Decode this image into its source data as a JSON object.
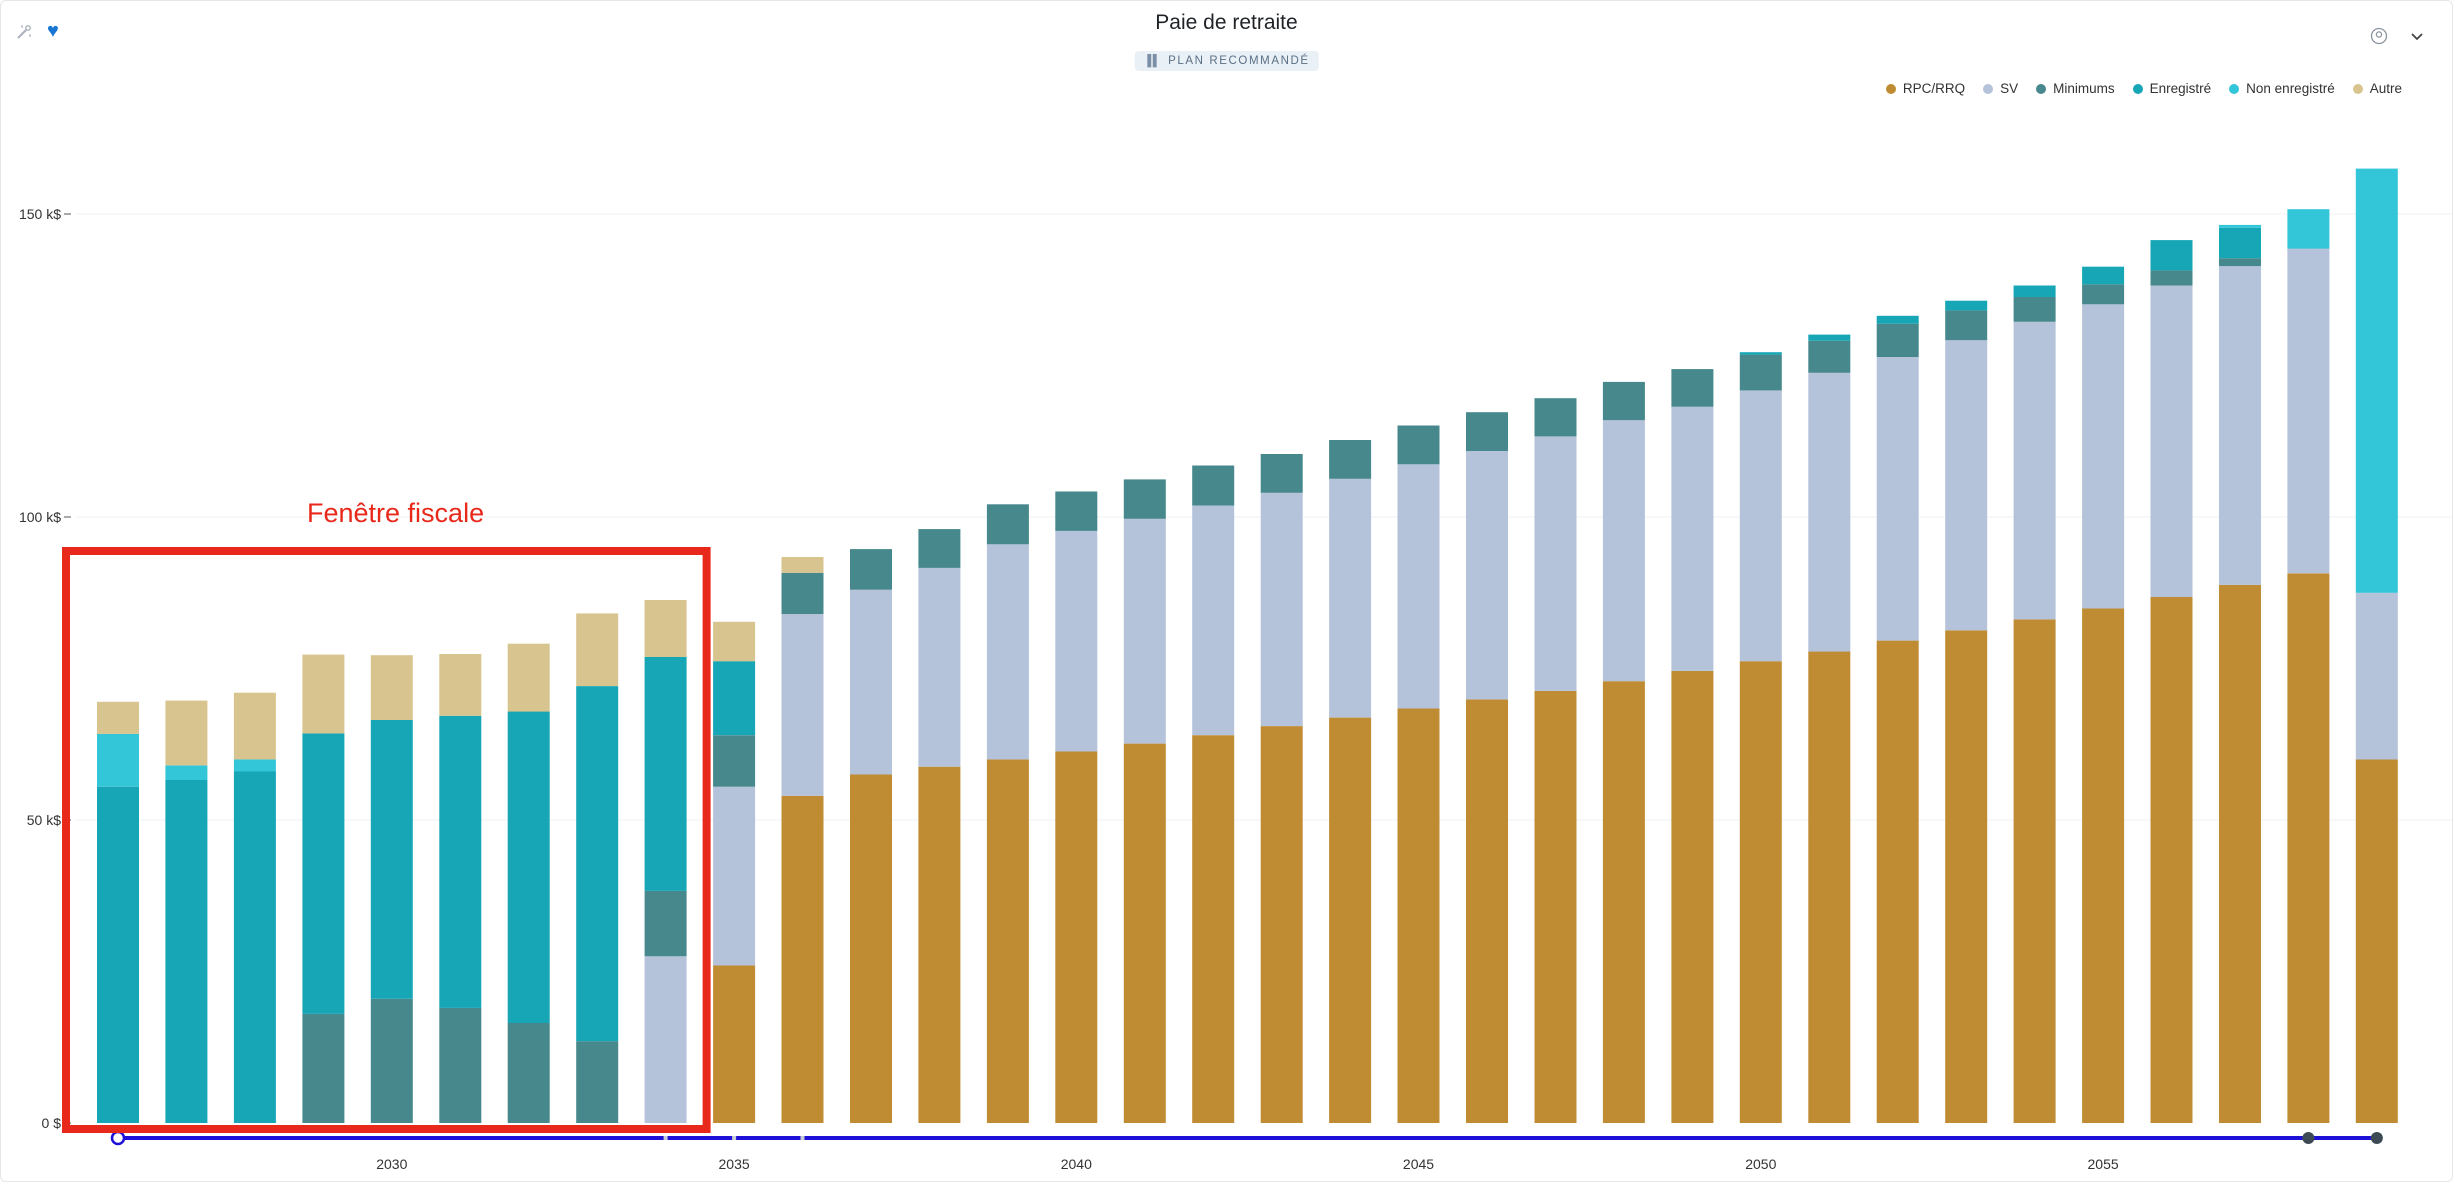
{
  "header": {
    "title": "Paie de retraite",
    "plan_badge": "PLAN RECOMMANDÉ"
  },
  "toolbar": {
    "left_icons": [
      "magic-wand-icon",
      "heart-icon"
    ],
    "right_icons": [
      "user-circle-icon",
      "chevron-down-icon"
    ]
  },
  "colors": {
    "rpc": "#c08c33",
    "sv": "#b4c2da",
    "minimums": "#46888b",
    "enregistre": "#16a6b6",
    "non_enregistre": "#33c5d8",
    "autre": "#d8c48e",
    "annotation": "#e8281a",
    "slider": "#1f10d8"
  },
  "legend": [
    {
      "key": "rpc",
      "label": "RPC/RRQ"
    },
    {
      "key": "sv",
      "label": "SV"
    },
    {
      "key": "minimums",
      "label": "Minimums"
    },
    {
      "key": "enregistre",
      "label": "Enregistré"
    },
    {
      "key": "non_enregistre",
      "label": "Non enregistré"
    },
    {
      "key": "autre",
      "label": "Autre"
    }
  ],
  "annotation": {
    "label": "Fenêtre fiscale",
    "start_year": 2026,
    "end_year": 2034
  },
  "chart_data": {
    "type": "bar",
    "stacked": true,
    "title": "Paie de retraite",
    "xlabel": "",
    "ylabel": "",
    "ylim": [
      0,
      160
    ],
    "y_unit": "k$",
    "yticks": [
      {
        "value": 0,
        "label": "0 $"
      },
      {
        "value": 50,
        "label": "50 k$"
      },
      {
        "value": 100,
        "label": "100 k$"
      },
      {
        "value": 150,
        "label": "150 k$"
      }
    ],
    "x_tick_labels": [
      "2030",
      "2035",
      "2040",
      "2045",
      "2050",
      "2055"
    ],
    "grid": true,
    "legend_position": "top-right",
    "categories": [
      2026,
      2027,
      2028,
      2029,
      2030,
      2031,
      2032,
      2033,
      2034,
      2035,
      2036,
      2037,
      2038,
      2039,
      2040,
      2041,
      2042,
      2043,
      2044,
      2045,
      2046,
      2047,
      2048,
      2049,
      2050,
      2051,
      2052,
      2053,
      2054,
      2055,
      2056,
      2057,
      2058,
      2059
    ],
    "series": [
      {
        "key": "rpc",
        "name": "RPC/RRQ",
        "values": [
          0,
          0,
          0,
          0,
          0,
          0,
          0,
          0,
          0,
          26,
          54,
          57.5,
          58.8,
          60,
          61.3,
          62.6,
          64,
          65.5,
          66.9,
          68.4,
          69.9,
          71.3,
          72.9,
          74.6,
          76.2,
          77.8,
          79.6,
          81.3,
          83.1,
          84.9,
          86.8,
          88.8,
          90.7,
          60
        ]
      },
      {
        "key": "sv",
        "name": "SV",
        "values": [
          0,
          0,
          0,
          0,
          0,
          0,
          0,
          0,
          27.5,
          29.5,
          30,
          30.5,
          32.8,
          35.5,
          36.4,
          37.1,
          37.9,
          38.5,
          39.4,
          40.3,
          41,
          42,
          43.1,
          43.6,
          44.7,
          46,
          46.8,
          47.9,
          49.1,
          50.2,
          51.4,
          52.6,
          53.6,
          27.5
        ]
      },
      {
        "key": "minimums",
        "name": "Minimums",
        "values": [
          0,
          0,
          0,
          18,
          20.5,
          19,
          16.5,
          13.5,
          10.8,
          8.5,
          6.8,
          6.7,
          6.4,
          6.6,
          6.5,
          6.5,
          6.6,
          6.4,
          6.4,
          6.4,
          6.4,
          6.3,
          6.3,
          6.2,
          5.9,
          5.3,
          5.5,
          4.9,
          4.1,
          3.3,
          2.5,
          1.3,
          0,
          0
        ]
      },
      {
        "key": "enregistre",
        "name": "Enregistré",
        "values": [
          55.5,
          56.6,
          58,
          46.3,
          46,
          48.2,
          51.4,
          58.6,
          38.6,
          12.2,
          0,
          0,
          0,
          0,
          0,
          0,
          0,
          0,
          0,
          0,
          0,
          0,
          0,
          0,
          0.4,
          1,
          1.3,
          1.6,
          1.9,
          2.9,
          5,
          5,
          0,
          0
        ]
      },
      {
        "key": "non_enregistre",
        "name": "Non enregistré",
        "values": [
          8.7,
          2.4,
          2,
          0,
          0,
          0,
          0,
          0,
          0,
          0,
          0,
          0,
          0,
          0,
          0,
          0,
          0,
          0,
          0,
          0,
          0,
          0,
          0,
          0,
          0,
          0,
          0,
          0,
          0,
          0,
          0,
          0.5,
          6.5,
          70
        ]
      },
      {
        "key": "autre",
        "name": "Autre",
        "values": [
          5.3,
          10.7,
          11,
          13,
          10.7,
          10.2,
          11.2,
          12,
          9.4,
          6.5,
          2.6,
          0,
          0,
          0,
          0,
          0,
          0,
          0,
          0,
          0,
          0,
          0,
          0,
          0,
          0,
          0,
          0,
          0,
          0,
          0,
          0,
          0,
          0,
          0
        ]
      }
    ]
  }
}
